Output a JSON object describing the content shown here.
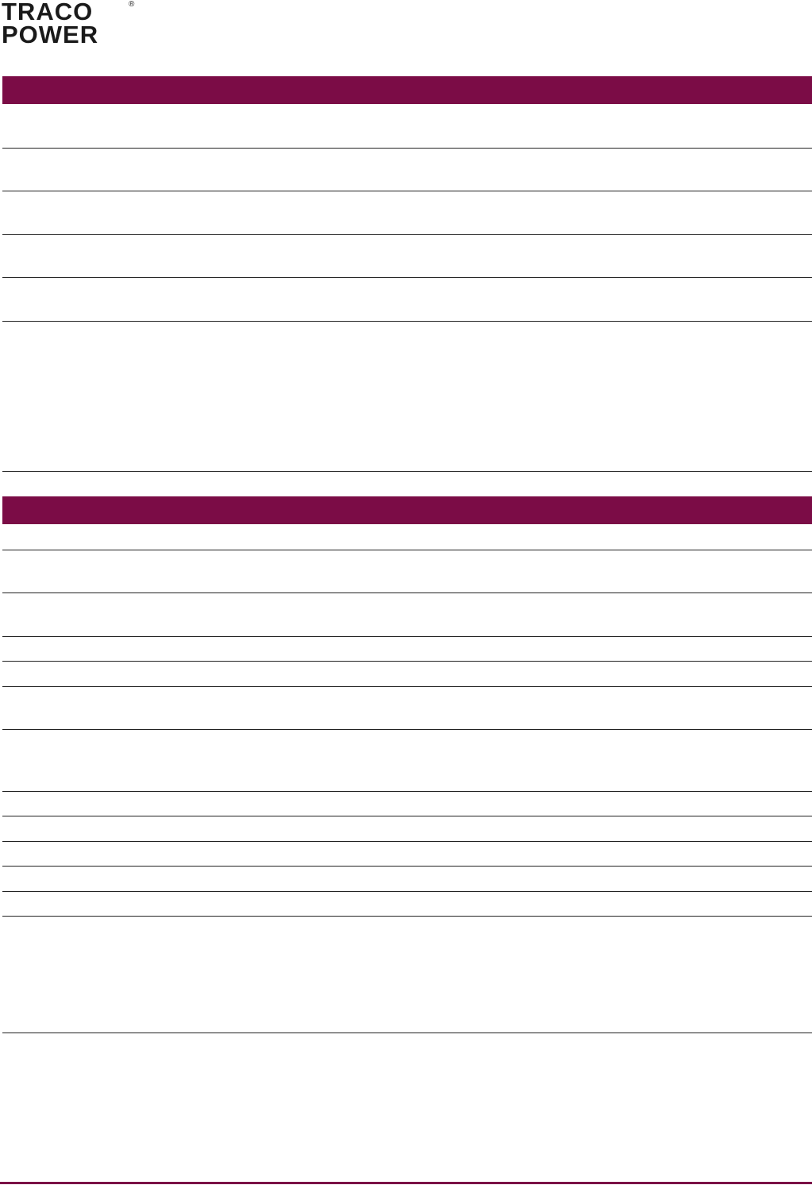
{
  "logo": {
    "line1": "TRACO",
    "line2": "POWER",
    "registered": "®"
  },
  "colors": {
    "accent": "#7b0c46",
    "rule": "#222222"
  },
  "sections": [
    {
      "header": "",
      "rows": [
        "",
        "",
        "",
        "",
        "",
        ""
      ]
    },
    {
      "header": "",
      "rows": [
        "",
        "",
        "",
        "",
        "",
        "",
        "",
        "",
        "",
        "",
        "",
        "",
        "",
        ""
      ]
    }
  ]
}
